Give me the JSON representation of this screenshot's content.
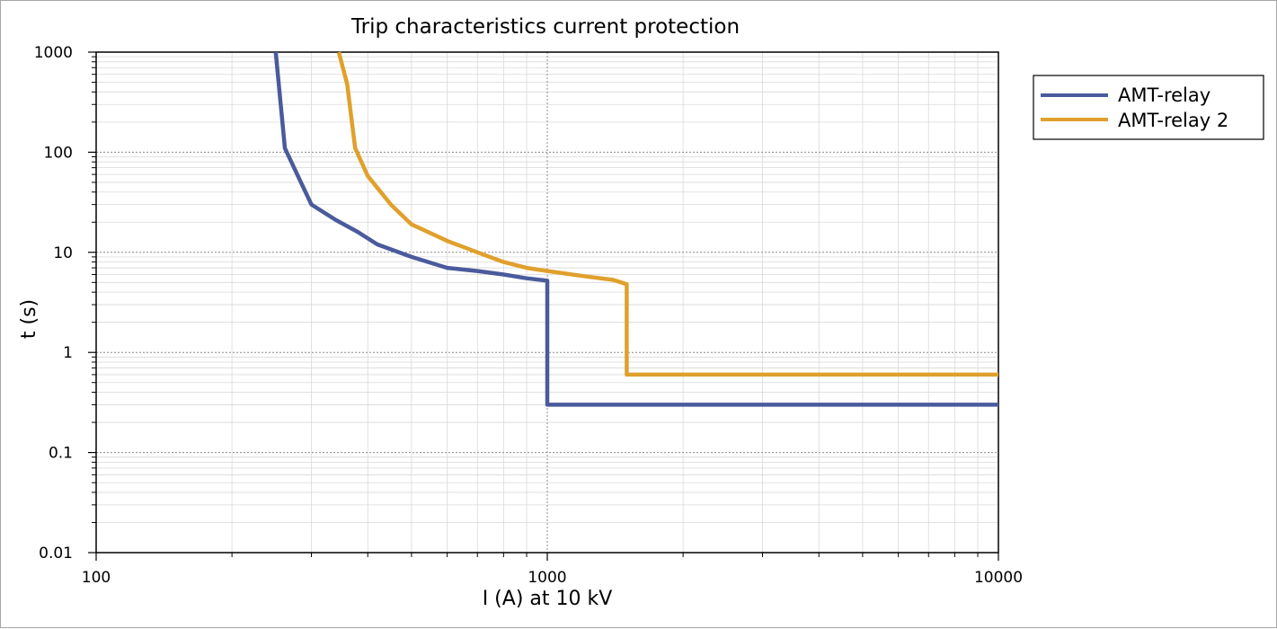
{
  "chart_data": {
    "type": "line",
    "title": "Trip characteristics current protection",
    "xlabel": "I (A) at 10 kV",
    "ylabel": "t (s)",
    "xscale": "log",
    "yscale": "log",
    "xlim": [
      100,
      10000
    ],
    "ylim": [
      0.01,
      1000
    ],
    "xticks": [
      "100",
      "1000",
      "10000"
    ],
    "yticks": [
      "1000",
      "100",
      "10",
      "1",
      "0.1",
      "0.01"
    ],
    "grid": true,
    "legend": "right",
    "series": [
      {
        "name": "AMT-relay",
        "color": "#4a5a9c",
        "x": [
          250,
          262,
          280,
          300,
          340,
          380,
          420,
          500,
          600,
          700,
          800,
          900,
          1000,
          1000,
          10000
        ],
        "y": [
          1000,
          110,
          58,
          30,
          21,
          16,
          12,
          9,
          7,
          6.5,
          6,
          5.5,
          5.2,
          0.3,
          0.3
        ]
      },
      {
        "name": "AMT-relay 2",
        "color": "#e0a02c",
        "x": [
          345,
          360,
          375,
          400,
          450,
          500,
          600,
          700,
          800,
          900,
          1000,
          1200,
          1400,
          1500,
          1500,
          10000
        ],
        "y": [
          1000,
          480,
          110,
          58,
          30,
          19,
          13,
          10,
          8,
          7,
          6.5,
          5.8,
          5.3,
          4.8,
          0.6,
          0.6
        ]
      }
    ]
  }
}
